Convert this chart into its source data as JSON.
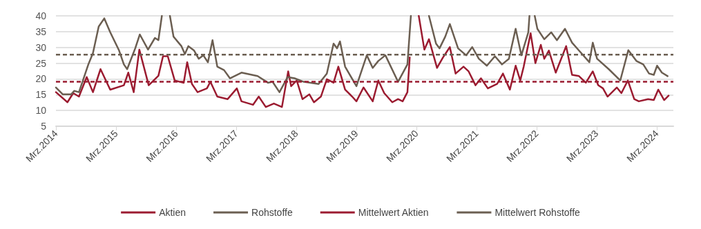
{
  "chart_data": {
    "type": "line",
    "series": [
      {
        "name": "Aktien",
        "color": "#9b1b30",
        "x": [
          "2014-03-01",
          "2014-05-10",
          "2014-06-14",
          "2014-07-19",
          "2014-09-04",
          "2014-10-12",
          "2014-11-27",
          "2015-01-25",
          "2015-04-18",
          "2015-05-15",
          "2015-06-17",
          "2015-07-21",
          "2015-09-16",
          "2015-11-14",
          "2015-12-12",
          "2016-01-10",
          "2016-02-21",
          "2016-04-16",
          "2016-05-07",
          "2016-06-05",
          "2016-07-09",
          "2016-09-04",
          "2016-09-25",
          "2016-11-06",
          "2017-01-08",
          "2017-03-05",
          "2017-04-02",
          "2017-06-11",
          "2017-07-16",
          "2017-08-28",
          "2017-10-16",
          "2017-12-04",
          "2018-01-11",
          "2018-01-29",
          "2018-03-04",
          "2018-04-08",
          "2018-05-20",
          "2018-06-17",
          "2018-07-29",
          "2018-09-03",
          "2018-10-14",
          "2018-11-12",
          "2018-12-23",
          "2019-02-04",
          "2019-03-02",
          "2019-04-14",
          "2019-06-09",
          "2019-07-13",
          "2019-08-18",
          "2019-10-06",
          "2019-11-10",
          "2019-12-08",
          "2020-01-06",
          "2020-01-20",
          "2020-02-20",
          "2020-03-15",
          "2020-04-18",
          "2020-05-16",
          "2020-07-04",
          "2020-08-09",
          "2020-09-20",
          "2020-10-25",
          "2020-12-12",
          "2021-01-12",
          "2021-02-23",
          "2021-03-28",
          "2021-05-09",
          "2021-07-04",
          "2021-08-09",
          "2021-09-20",
          "2021-10-25",
          "2021-11-22",
          "2021-12-13",
          "2022-01-24",
          "2022-02-22",
          "2022-03-27",
          "2022-04-17",
          "2022-05-15",
          "2022-06-26",
          "2022-08-28",
          "2022-10-03",
          "2022-11-14",
          "2022-12-26",
          "2023-02-06",
          "2023-03-11",
          "2023-04-09",
          "2023-05-07",
          "2023-07-02",
          "2023-07-30",
          "2023-09-07",
          "2023-10-16",
          "2023-11-13",
          "2024-01-08",
          "2024-02-12",
          "2024-03-10",
          "2024-04-15",
          "2024-05-12"
        ],
        "values": [
          15.8,
          12.6,
          15.5,
          14.4,
          20.6,
          15.8,
          23.1,
          16.6,
          18,
          22,
          15.8,
          29.3,
          18,
          21,
          27.2,
          27.2,
          19.5,
          18.8,
          25.3,
          18.4,
          15.8,
          17,
          19.1,
          14.4,
          13.6,
          17,
          12.9,
          11.8,
          14.4,
          11.1,
          12.2,
          11.1,
          22.4,
          17.7,
          19.5,
          13.6,
          15.1,
          12.6,
          14.4,
          19.9,
          18.8,
          23.9,
          16.6,
          14.4,
          12.9,
          17.3,
          12.9,
          19.5,
          15.5,
          12.6,
          13.6,
          12.9,
          15.8,
          26.8,
          null,
          40,
          29.3,
          32.6,
          23.5,
          26.8,
          30.1,
          21.7,
          23.9,
          22.4,
          18,
          20.2,
          17,
          18.4,
          21.7,
          16.6,
          24.2,
          19.5,
          23.9,
          34.5,
          25,
          30.8,
          26.4,
          29,
          22,
          30.4,
          21.3,
          20.9,
          18.8,
          22.4,
          18,
          17,
          14.4,
          17.3,
          15.5,
          19.5,
          13.6,
          12.9,
          13.6,
          13.3,
          16.6,
          13.3,
          14.7
        ]
      },
      {
        "name": "Rohstoffe",
        "color": "#6b5e51",
        "x": [
          "2014-03-01",
          "2014-04-12",
          "2014-06-01",
          "2014-06-20",
          "2014-07-19",
          "2014-09-14",
          "2014-10-12",
          "2014-11-16",
          "2014-12-20",
          "2015-01-25",
          "2015-03-20",
          "2015-04-18",
          "2015-05-08",
          "2015-06-26",
          "2015-07-24",
          "2015-09-12",
          "2015-10-24",
          "2015-11-14",
          "2015-12-05",
          "2016-01-01",
          "2016-01-23",
          "2016-02-14",
          "2016-04-02",
          "2016-04-23",
          "2016-05-14",
          "2016-06-18",
          "2016-07-16",
          "2016-08-13",
          "2016-09-10",
          "2016-10-08",
          "2016-11-06",
          "2016-12-17",
          "2017-01-22",
          "2017-04-02",
          "2017-07-09",
          "2017-09-10",
          "2017-10-08",
          "2017-11-19",
          "2018-01-08",
          "2018-02-19",
          "2018-04-15",
          "2018-07-15",
          "2018-09-03",
          "2018-10-14",
          "2018-11-04",
          "2018-11-22",
          "2018-12-23",
          "2019-03-02",
          "2019-05-04",
          "2019-06-09",
          "2019-07-13",
          "2019-08-25",
          "2019-11-10",
          "2020-01-06",
          "2020-01-27",
          "2020-02-25",
          "2020-05-16",
          "2020-06-28",
          "2020-07-19",
          "2020-08-23",
          "2020-09-20",
          "2020-11-09",
          "2020-12-28",
          "2021-02-03",
          "2021-03-15",
          "2021-05-03",
          "2021-06-21",
          "2021-08-03",
          "2021-09-14",
          "2021-10-25",
          "2021-11-29",
          "2022-01-10",
          "2022-01-17",
          "2022-02-01",
          "2022-02-18",
          "2022-03-06",
          "2022-04-17",
          "2022-05-29",
          "2022-07-03",
          "2022-08-21",
          "2022-10-03",
          "2022-11-14",
          "2023-01-16",
          "2023-02-06",
          "2023-03-04",
          "2023-05-14",
          "2023-07-23",
          "2023-09-10",
          "2023-10-29",
          "2023-12-10",
          "2024-01-14",
          "2024-02-12",
          "2024-03-03",
          "2024-04-01",
          "2024-05-06"
        ],
        "values": [
          17.3,
          15.1,
          15.1,
          16.2,
          15.8,
          24.6,
          28.2,
          36.6,
          39.2,
          34.8,
          29,
          24.6,
          23.1,
          29.7,
          34.1,
          29.3,
          33,
          32.3,
          40,
          null,
          40,
          33.4,
          30.4,
          27.9,
          30.4,
          29,
          26.4,
          27.5,
          25.3,
          32.3,
          23.9,
          22.8,
          20.2,
          22,
          20.9,
          18.8,
          19.1,
          15.8,
          20.6,
          20.2,
          19.1,
          18.4,
          21.7,
          31.2,
          29.7,
          31.9,
          23.9,
          17.7,
          27.5,
          23.5,
          25.7,
          27.5,
          19.1,
          24.6,
          40,
          null,
          40,
          31.2,
          29.7,
          33.4,
          37.4,
          29.7,
          27.5,
          30.1,
          26.4,
          24.2,
          27.2,
          24.6,
          26.4,
          35.9,
          27.5,
          34.8,
          40,
          null,
          40,
          35.9,
          32.6,
          34.8,
          32.3,
          35.9,
          31.5,
          29,
          25.3,
          31.5,
          26.4,
          23.1,
          19.5,
          29.1,
          25.7,
          24.6,
          21.7,
          21.3,
          24.2,
          22,
          20.9
        ]
      }
    ],
    "ref_lines": [
      {
        "axis": "y",
        "value": 19.1,
        "label": "Mittelwert Aktien",
        "color": "#9b1b30",
        "line_style": "dashed"
      },
      {
        "axis": "y",
        "value": 27.7,
        "label": "Mittelwert Rohstoffe",
        "color": "#6b5e51",
        "line_style": "dashed"
      }
    ],
    "xlim": [
      "2014-03-01",
      "2024-06-10"
    ],
    "xticks": [
      {
        "value": "2014-03-01",
        "label": "Mrz.2014"
      },
      {
        "value": "2015-03-01",
        "label": "Mrz.2015"
      },
      {
        "value": "2016-03-01",
        "label": "Mrz.2016"
      },
      {
        "value": "2017-03-01",
        "label": "Mrz.2017"
      },
      {
        "value": "2018-03-01",
        "label": "Mrz.2018"
      },
      {
        "value": "2019-03-01",
        "label": "Mrz.2019"
      },
      {
        "value": "2020-03-01",
        "label": "Mrz.2020"
      },
      {
        "value": "2021-03-01",
        "label": "Mrz.2021"
      },
      {
        "value": "2022-03-01",
        "label": "Mrz.2022"
      },
      {
        "value": "2023-03-01",
        "label": "Mrz.2023"
      },
      {
        "value": "2024-03-01",
        "label": "Mrz.2024"
      }
    ],
    "ylim": [
      5,
      40
    ],
    "yticks": [
      5,
      10,
      15,
      20,
      25,
      30,
      35,
      40
    ],
    "grid": "y",
    "legend": "bottom",
    "marker": "none",
    "line_style": "solid"
  }
}
